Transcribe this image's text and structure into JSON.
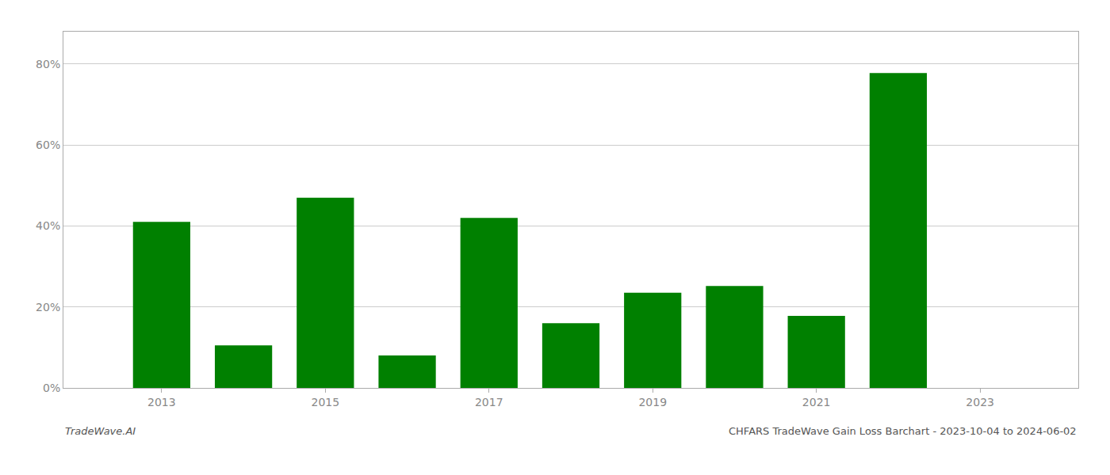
{
  "chart_data": {
    "type": "bar",
    "x": [
      2013,
      2014,
      2015,
      2016,
      2017,
      2018,
      2019,
      2020,
      2021,
      2022
    ],
    "values": [
      0.41,
      0.105,
      0.47,
      0.08,
      0.42,
      0.16,
      0.235,
      0.252,
      0.178,
      0.778
    ],
    "color": "#008000",
    "xlim": [
      2011.8,
      2024.2
    ],
    "xticks": [
      2013,
      2015,
      2017,
      2019,
      2021,
      2023
    ],
    "ylim": [
      0,
      0.88
    ],
    "yticks": [
      {
        "value": 0.0,
        "label": "0%"
      },
      {
        "value": 0.2,
        "label": "20%"
      },
      {
        "value": 0.4,
        "label": "40%"
      },
      {
        "value": 0.6,
        "label": "60%"
      },
      {
        "value": 0.8,
        "label": "80%"
      }
    ],
    "grid": true,
    "annotations": [
      "TradeWave.AI",
      "CHFARS TradeWave Gain Loss Barchart - 2023-10-04 to 2024-06-02"
    ]
  }
}
